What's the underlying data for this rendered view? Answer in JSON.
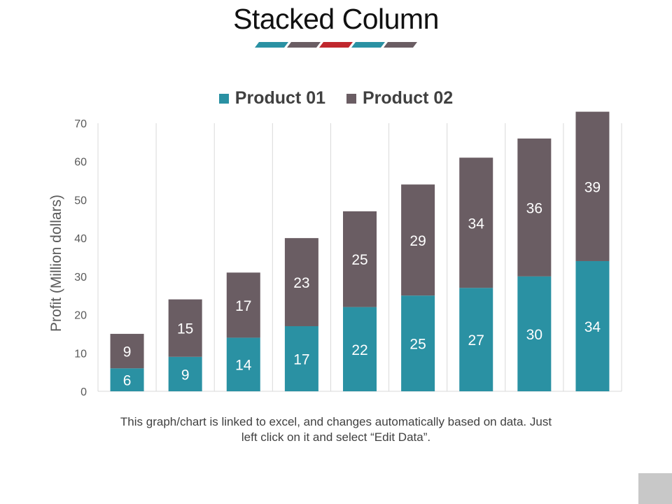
{
  "title": "Stacked Column",
  "caption": "This graph/chart is linked to excel, and changes automatically based on data. Just left click on it and select “Edit Data”.",
  "colors": {
    "product01": "#2a91a3",
    "product02": "#6a5d63",
    "deco": [
      "#2a91a3",
      "#6a5d63",
      "#c0272d",
      "#2a91a3",
      "#6a5d63"
    ]
  },
  "chart_data": {
    "type": "bar",
    "stacked": true,
    "title": "",
    "xlabel": "",
    "ylabel": "Profit  (Million dollars)",
    "ylim": [
      0,
      70
    ],
    "yticks": [
      0,
      10,
      20,
      30,
      40,
      50,
      60,
      70
    ],
    "grid": "vertical",
    "legend": "top",
    "categories": [
      "",
      "",
      "",
      "",
      "",
      "",
      "",
      "",
      ""
    ],
    "series": [
      {
        "name": "Product 01",
        "color": "#2a91a3",
        "values": [
          6,
          9,
          14,
          17,
          22,
          25,
          27,
          30,
          34
        ]
      },
      {
        "name": "Product 02",
        "color": "#6a5d63",
        "values": [
          9,
          15,
          17,
          23,
          25,
          29,
          34,
          36,
          39
        ]
      }
    ]
  }
}
